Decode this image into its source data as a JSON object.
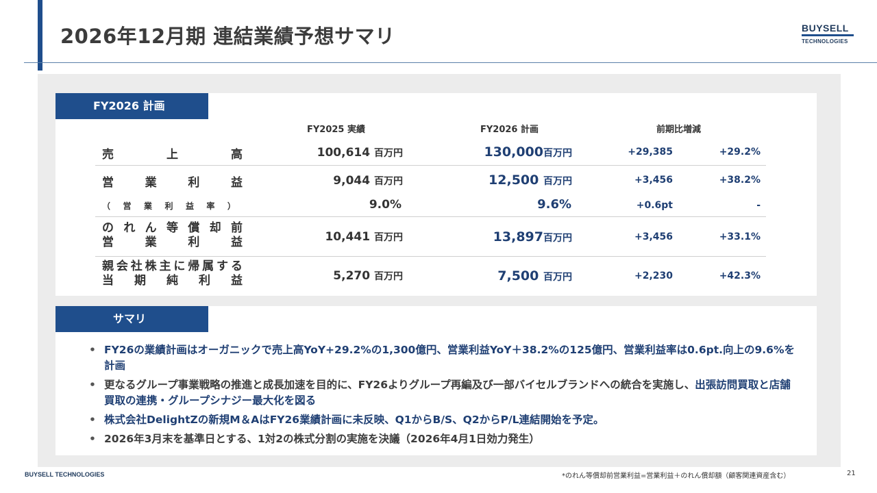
{
  "header": {
    "title": "2026年12月期 連結業績予想サマリ",
    "logo_top": "BUYSELL",
    "logo_bottom": "TECHNOLOGIES"
  },
  "plan": {
    "tab_label": "FY2026 計画",
    "columns": {
      "fy2025": "FY2025 実績",
      "fy2026": "FY2026 計画",
      "change": "前期比増減"
    },
    "unit": "百万円",
    "rows": [
      {
        "label": [
          "売",
          "上",
          "高"
        ],
        "fy2025": "100,614",
        "fy2026": "130,000",
        "change": "+29,385",
        "pct": "+29.2%"
      },
      {
        "label": [
          "営",
          "業",
          "利",
          "益"
        ],
        "fy2025": "9,044",
        "fy2026": "12,500",
        "change": "+3,456",
        "pct": "+38.2%"
      },
      {
        "label": [
          "（",
          "営",
          "業",
          "利",
          "益",
          "率",
          "）"
        ],
        "fy2025": "9.0%",
        "fy2026": "9.6%",
        "change": "+0.6pt",
        "pct": "-"
      },
      {
        "label_line1": [
          "の",
          "れ",
          "ん",
          "等",
          "償",
          "却",
          "前"
        ],
        "label_line2": [
          "営",
          "業",
          "利",
          "益"
        ],
        "fy2025": "10,441",
        "fy2026": "13,897",
        "change": "+3,456",
        "pct": "+33.1%"
      },
      {
        "label_line1": [
          "親",
          "会",
          "社",
          "株",
          "主",
          "に",
          "帰",
          "属",
          "す",
          "る"
        ],
        "label_line2": [
          "当",
          "期",
          "純",
          "利",
          "益"
        ],
        "fy2025": "5,270",
        "fy2026": "7,500",
        "change": "+2,230",
        "pct": "+42.3%"
      }
    ]
  },
  "summary": {
    "tab_label": "サマリ",
    "bullets": [
      "FY26の業績計画はオーガニックで売上高YoY+29.2%の1,300億円、営業利益YoY＋38.2%の125億円、営業利益率は0.6pt.向上の9.6%を計画",
      {
        "part1": "更なるグループ事業戦略の推進と成長加速を目的に、FY26よりグループ再編及び一部バイセルブランドへの統合を実施し、",
        "part2": "出張訪問買取と店舗買取の連携・グループシナジー最大化を図る"
      },
      "株式会社DelightZの新規M＆AはFY26業績計画に未反映、Q1からB/S、Q2からP/L連結開始を予定。",
      "2026年3月末を基準日とする、1対2の株式分割の実施を決議（2026年4月1日効力発生）"
    ]
  },
  "footer": {
    "company": "BUYSELL TECHNOLOGIES",
    "note": "*のれん等償却前営業利益=営業利益＋のれん償却額（顧客関連資産含む）",
    "page": "21"
  }
}
